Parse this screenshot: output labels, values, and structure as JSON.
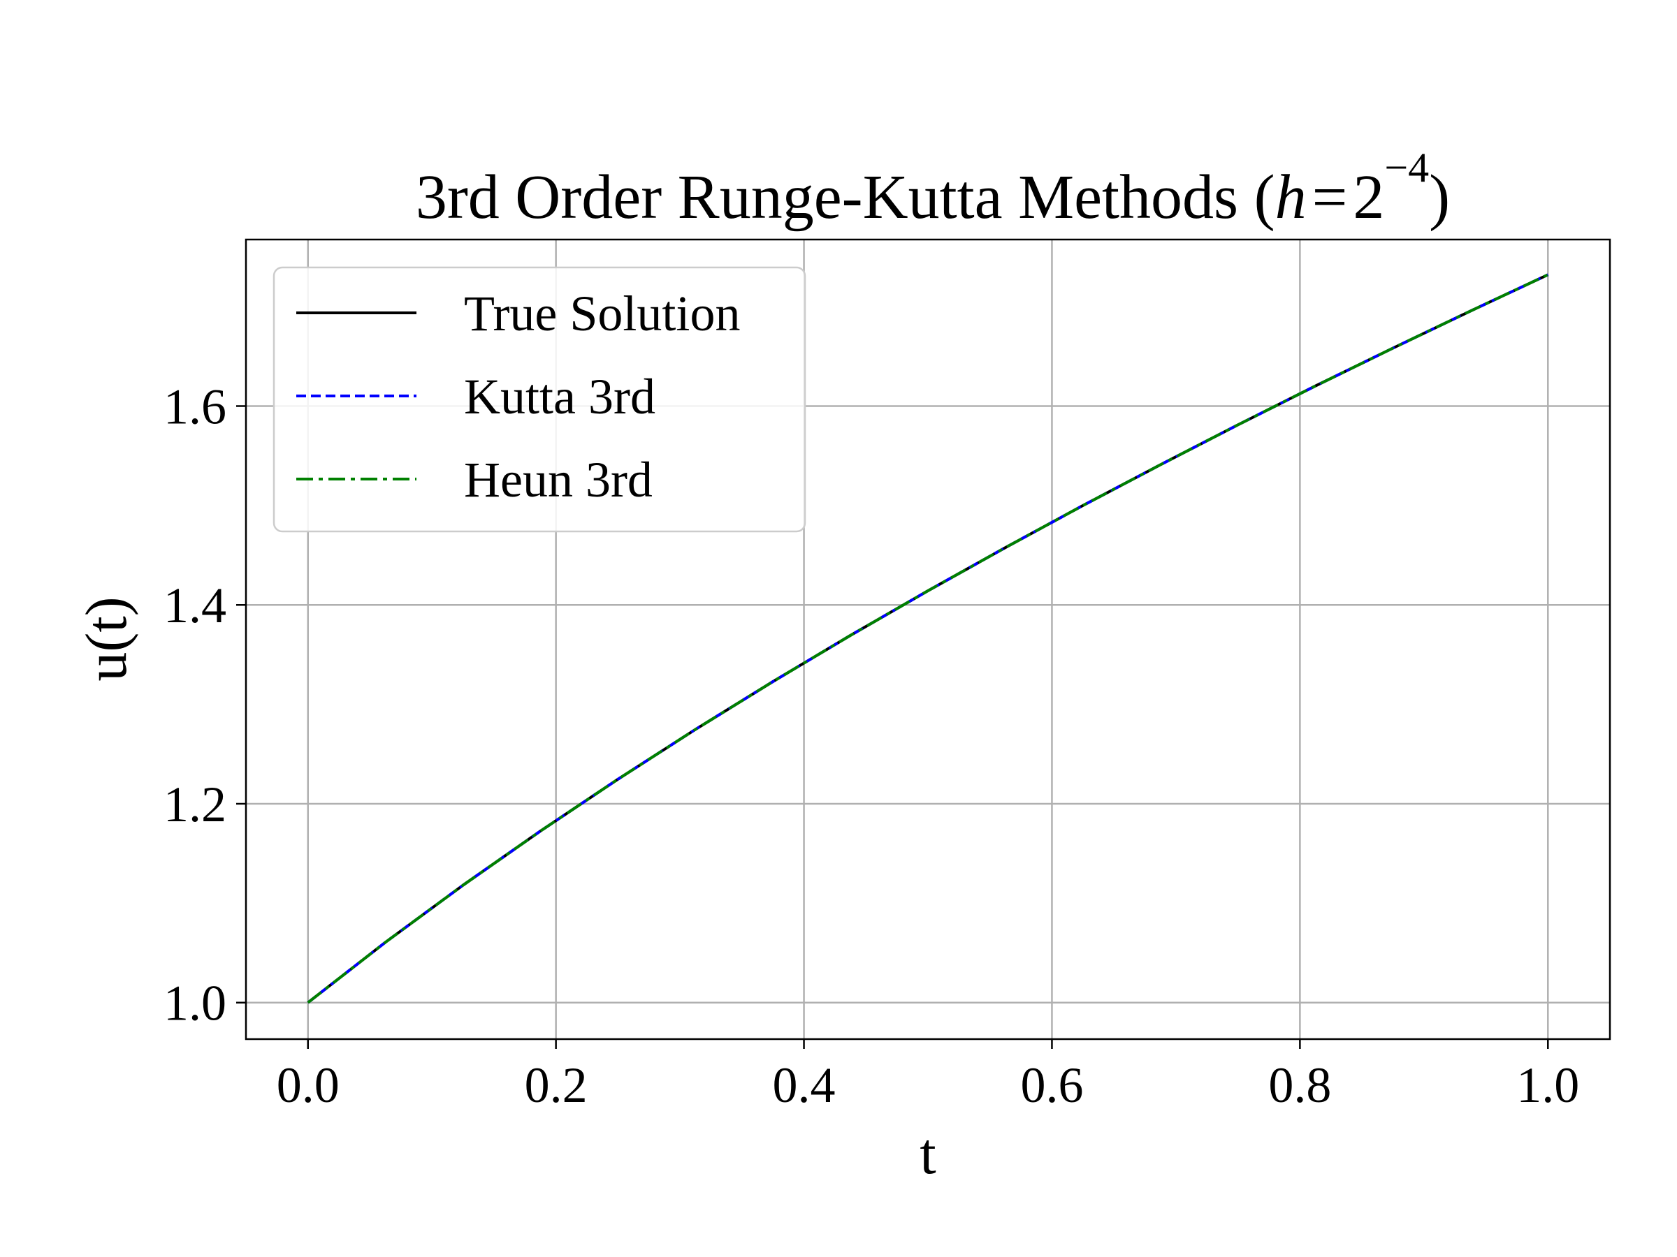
{
  "chart_data": {
    "type": "line",
    "title_main": "3rd Order Runge-Kutta Methods (",
    "title_var": "h",
    "title_eq": "=",
    "title_base": "2",
    "title_exp": "−4",
    "title_close": ")",
    "xlabel": "t",
    "ylabel": "u(t)",
    "xlim": [
      -0.05,
      1.05
    ],
    "ylim": [
      0.9633,
      1.7675
    ],
    "xticks": [
      0.0,
      0.2,
      0.4,
      0.6,
      0.8,
      1.0
    ],
    "xtick_labels": [
      "0.0",
      "0.2",
      "0.4",
      "0.6",
      "0.8",
      "1.0"
    ],
    "yticks": [
      1.0,
      1.2,
      1.4,
      1.6
    ],
    "ytick_labels": [
      "1.0",
      "1.2",
      "1.4",
      "1.6"
    ],
    "grid": true,
    "legend_position": "upper-left",
    "x": [
      0,
      0.0625,
      0.125,
      0.1875,
      0.25,
      0.3125,
      0.375,
      0.4375,
      0.5,
      0.5625,
      0.625,
      0.6875,
      0.75,
      0.8125,
      0.875,
      0.9375,
      1.0
    ],
    "series": [
      {
        "name": "True Solution",
        "color": "#000000",
        "style": "solid",
        "values": [
          1.0,
          1.0607,
          1.118,
          1.1726,
          1.2247,
          1.2748,
          1.3229,
          1.3693,
          1.4142,
          1.4577,
          1.5,
          1.541,
          1.5811,
          1.6202,
          1.6583,
          1.6956,
          1.7321
        ]
      },
      {
        "name": "Kutta 3rd",
        "color": "#0000ff",
        "style": "dashed",
        "values": [
          1.0,
          1.0607,
          1.118,
          1.1726,
          1.2247,
          1.2748,
          1.3229,
          1.3693,
          1.4142,
          1.4577,
          1.5,
          1.541,
          1.5811,
          1.6202,
          1.6583,
          1.6956,
          1.7321
        ]
      },
      {
        "name": "Heun 3rd",
        "color": "#008000",
        "style": "dashdot",
        "values": [
          1.0,
          1.0607,
          1.118,
          1.1726,
          1.2247,
          1.2748,
          1.3229,
          1.3693,
          1.4142,
          1.4577,
          1.5,
          1.541,
          1.5811,
          1.6202,
          1.6583,
          1.6956,
          1.7321
        ]
      }
    ]
  }
}
